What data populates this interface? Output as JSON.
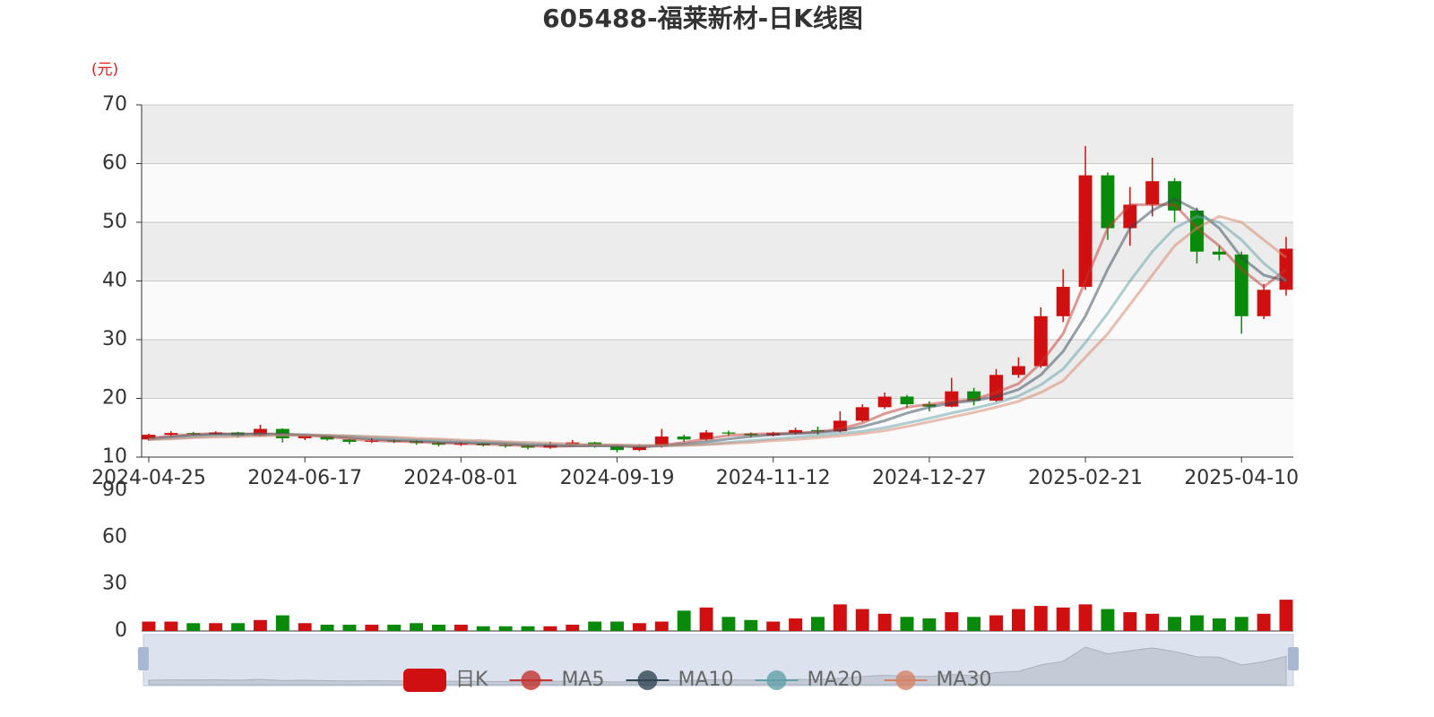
{
  "chart_data": {
    "type": "candlestick",
    "title": "605488-福莱新材-日K线图",
    "y_label": "(元)",
    "candle_name": "日K",
    "up_color": "#d01010",
    "down_color": "#0a8a0a",
    "grid": true,
    "categories": [
      "2024-04-25",
      null,
      null,
      null,
      null,
      null,
      null,
      "2024-06-17",
      null,
      null,
      null,
      null,
      null,
      null,
      "2024-08-01",
      null,
      null,
      null,
      null,
      null,
      null,
      "2024-09-19",
      null,
      null,
      null,
      null,
      null,
      null,
      "2024-11-12",
      null,
      null,
      null,
      null,
      null,
      null,
      "2024-12-27",
      null,
      null,
      null,
      null,
      null,
      null,
      "2025-02-21",
      null,
      null,
      null,
      null,
      null,
      null,
      "2025-04-10",
      null,
      null
    ],
    "ohlc": [
      [
        13,
        13.8,
        12.8,
        14
      ],
      [
        13.8,
        14.1,
        13.6,
        14.4
      ],
      [
        14.1,
        13.9,
        13.7,
        14.3
      ],
      [
        13.9,
        14.2,
        13.8,
        14.4
      ],
      [
        14.2,
        13.6,
        13.3,
        14.3
      ],
      [
        13.6,
        14.8,
        13.5,
        15.5
      ],
      [
        14.8,
        13.2,
        12.5,
        14.9
      ],
      [
        13.2,
        13.6,
        12.9,
        13.9
      ],
      [
        13.6,
        13,
        12.8,
        13.7
      ],
      [
        13,
        12.6,
        12.2,
        13.1
      ],
      [
        12.6,
        12.8,
        12.4,
        13.2
      ],
      [
        12.8,
        12.7,
        12.4,
        13
      ],
      [
        12.7,
        12.4,
        12.1,
        12.9
      ],
      [
        12.4,
        12.1,
        11.8,
        12.6
      ],
      [
        12.1,
        12.3,
        11.9,
        12.6
      ],
      [
        12.3,
        12,
        11.8,
        12.4
      ],
      [
        12,
        11.9,
        11.6,
        12.2
      ],
      [
        11.9,
        11.6,
        11.3,
        12
      ],
      [
        11.6,
        12.1,
        11.4,
        12.6
      ],
      [
        12.1,
        12.5,
        11.9,
        12.9
      ],
      [
        12.5,
        11.9,
        11.6,
        12.6
      ],
      [
        11.9,
        11.2,
        10.8,
        12
      ],
      [
        11.2,
        11.8,
        11,
        12.2
      ],
      [
        11.8,
        13.5,
        11.6,
        14.8
      ],
      [
        13.5,
        13,
        12.6,
        13.8
      ],
      [
        13,
        14.2,
        12.8,
        14.6
      ],
      [
        14.2,
        14,
        13.6,
        14.5
      ],
      [
        14,
        13.7,
        13.4,
        14.2
      ],
      [
        13.7,
        14.1,
        13.5,
        14.3
      ],
      [
        14.1,
        14.6,
        13.8,
        15
      ],
      [
        14.6,
        14.4,
        13.8,
        15.2
      ],
      [
        14.4,
        16.2,
        14.2,
        17.8
      ],
      [
        16.2,
        18.5,
        16,
        19
      ],
      [
        18.5,
        20.3,
        18.2,
        21
      ],
      [
        20.3,
        19,
        18.4,
        20.6
      ],
      [
        19,
        18.6,
        17.8,
        19.5
      ],
      [
        18.6,
        21.2,
        18.5,
        23.5
      ],
      [
        21.2,
        19.6,
        18.8,
        21.8
      ],
      [
        19.6,
        24,
        19.4,
        25
      ],
      [
        24,
        25.5,
        23.5,
        27
      ],
      [
        25.5,
        34,
        25.2,
        35.5
      ],
      [
        34,
        39,
        33,
        42
      ],
      [
        39,
        58,
        38.5,
        63
      ],
      [
        58,
        49,
        47,
        58.5
      ],
      [
        49,
        53,
        46,
        56
      ],
      [
        53,
        57,
        51,
        61
      ],
      [
        57,
        52,
        50,
        57.5
      ],
      [
        52,
        45,
        43,
        52.5
      ],
      [
        45,
        44.5,
        43.5,
        46
      ],
      [
        44.5,
        34,
        31,
        45
      ],
      [
        34,
        38.5,
        33.5,
        39.5
      ],
      [
        38.5,
        45.5,
        37.5,
        47.5
      ]
    ],
    "series": [
      {
        "name": "MA5",
        "color": "#c23531",
        "values": [
          13.2,
          13.6,
          13.9,
          14,
          13.9,
          14,
          13.9,
          13.7,
          13.5,
          13.1,
          12.8,
          12.7,
          12.6,
          12.4,
          12.3,
          12.2,
          12.1,
          11.9,
          11.8,
          11.9,
          12,
          11.9,
          11.7,
          12,
          12.5,
          13.1,
          13.7,
          13.9,
          14,
          14.1,
          14.3,
          14.8,
          15.8,
          17.4,
          18.5,
          19,
          19.5,
          19.8,
          21,
          22.5,
          26,
          31,
          40,
          49,
          53,
          53,
          53,
          49,
          46,
          42,
          39,
          42
        ]
      },
      {
        "name": "MA10",
        "color": "#2f4554",
        "values": [
          13.1,
          13.4,
          13.7,
          13.9,
          13.9,
          13.9,
          13.9,
          13.8,
          13.6,
          13.4,
          13.1,
          12.9,
          12.8,
          12.6,
          12.5,
          12.4,
          12.3,
          12.1,
          12,
          11.9,
          11.9,
          11.9,
          11.8,
          11.9,
          12.2,
          12.6,
          13.1,
          13.5,
          13.8,
          14,
          14.2,
          14.5,
          15.2,
          16.2,
          17.5,
          18.5,
          19.2,
          19.6,
          20.3,
          21.5,
          24,
          28,
          34,
          42,
          49,
          52,
          54,
          52,
          49,
          44,
          41,
          40
        ]
      },
      {
        "name": "MA20",
        "color": "#61a0a8",
        "values": [
          13,
          13.2,
          13.4,
          13.6,
          13.7,
          13.8,
          13.8,
          13.8,
          13.7,
          13.6,
          13.4,
          13.2,
          13,
          12.9,
          12.7,
          12.6,
          12.5,
          12.3,
          12.2,
          12.1,
          12,
          12,
          11.9,
          11.9,
          12,
          12.2,
          12.5,
          12.8,
          13.1,
          13.4,
          13.7,
          14,
          14.4,
          15,
          15.8,
          16.6,
          17.5,
          18.3,
          19.2,
          20.4,
          22.3,
          25,
          29.5,
          34.5,
          40,
          45,
          49,
          51,
          50,
          47,
          43,
          40
        ]
      },
      {
        "name": "MA30",
        "color": "#d48265",
        "values": [
          13,
          13.1,
          13.3,
          13.4,
          13.5,
          13.6,
          13.7,
          13.7,
          13.7,
          13.6,
          13.5,
          13.4,
          13.2,
          13.1,
          12.9,
          12.8,
          12.6,
          12.5,
          12.4,
          12.2,
          12.1,
          12.1,
          12,
          12,
          12,
          12.1,
          12.3,
          12.5,
          12.8,
          13,
          13.3,
          13.6,
          14,
          14.5,
          15.2,
          16,
          16.8,
          17.6,
          18.5,
          19.5,
          21,
          23,
          27,
          31,
          36,
          41,
          46,
          49,
          51,
          50,
          47,
          44
        ]
      }
    ],
    "ylim": [
      10,
      70
    ],
    "yticks": [
      10,
      20,
      30,
      40,
      50,
      60,
      70
    ],
    "volume": {
      "ylim": [
        0,
        90
      ],
      "yticks": [
        0,
        30,
        60,
        90
      ],
      "values": [
        6,
        6,
        5,
        5,
        5,
        7,
        10,
        5,
        4,
        4,
        4,
        4,
        5,
        4,
        4,
        3,
        3,
        3,
        3,
        4,
        6,
        6,
        5,
        6,
        13,
        15,
        9,
        7,
        6,
        8,
        9,
        17,
        14,
        11,
        9,
        8,
        12,
        9,
        10,
        14,
        16,
        15,
        17,
        14,
        12,
        11,
        9,
        10,
        8,
        9,
        11,
        20
      ]
    }
  }
}
